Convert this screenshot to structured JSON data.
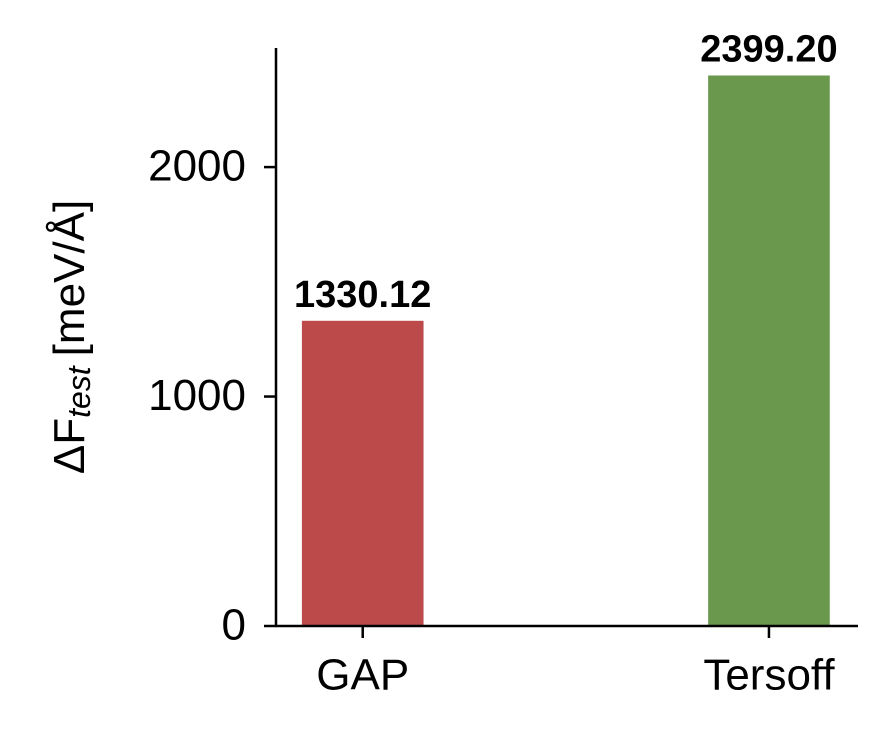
{
  "chart_data": {
    "type": "bar",
    "ylabel": "ΔF",
    "ylabel_subscript": "test",
    "ylabel_unit": "[meV/Å]",
    "categories": [
      "GAP",
      "Tersoff"
    ],
    "values": [
      1330.12,
      2399.2
    ],
    "value_labels": [
      "1330.12",
      "2399.20"
    ],
    "colors": [
      "#bc4a4a",
      "#6a994e"
    ],
    "ylim": [
      0,
      2519
    ],
    "yticks": [
      0,
      1000,
      2000
    ],
    "grid": false
  }
}
